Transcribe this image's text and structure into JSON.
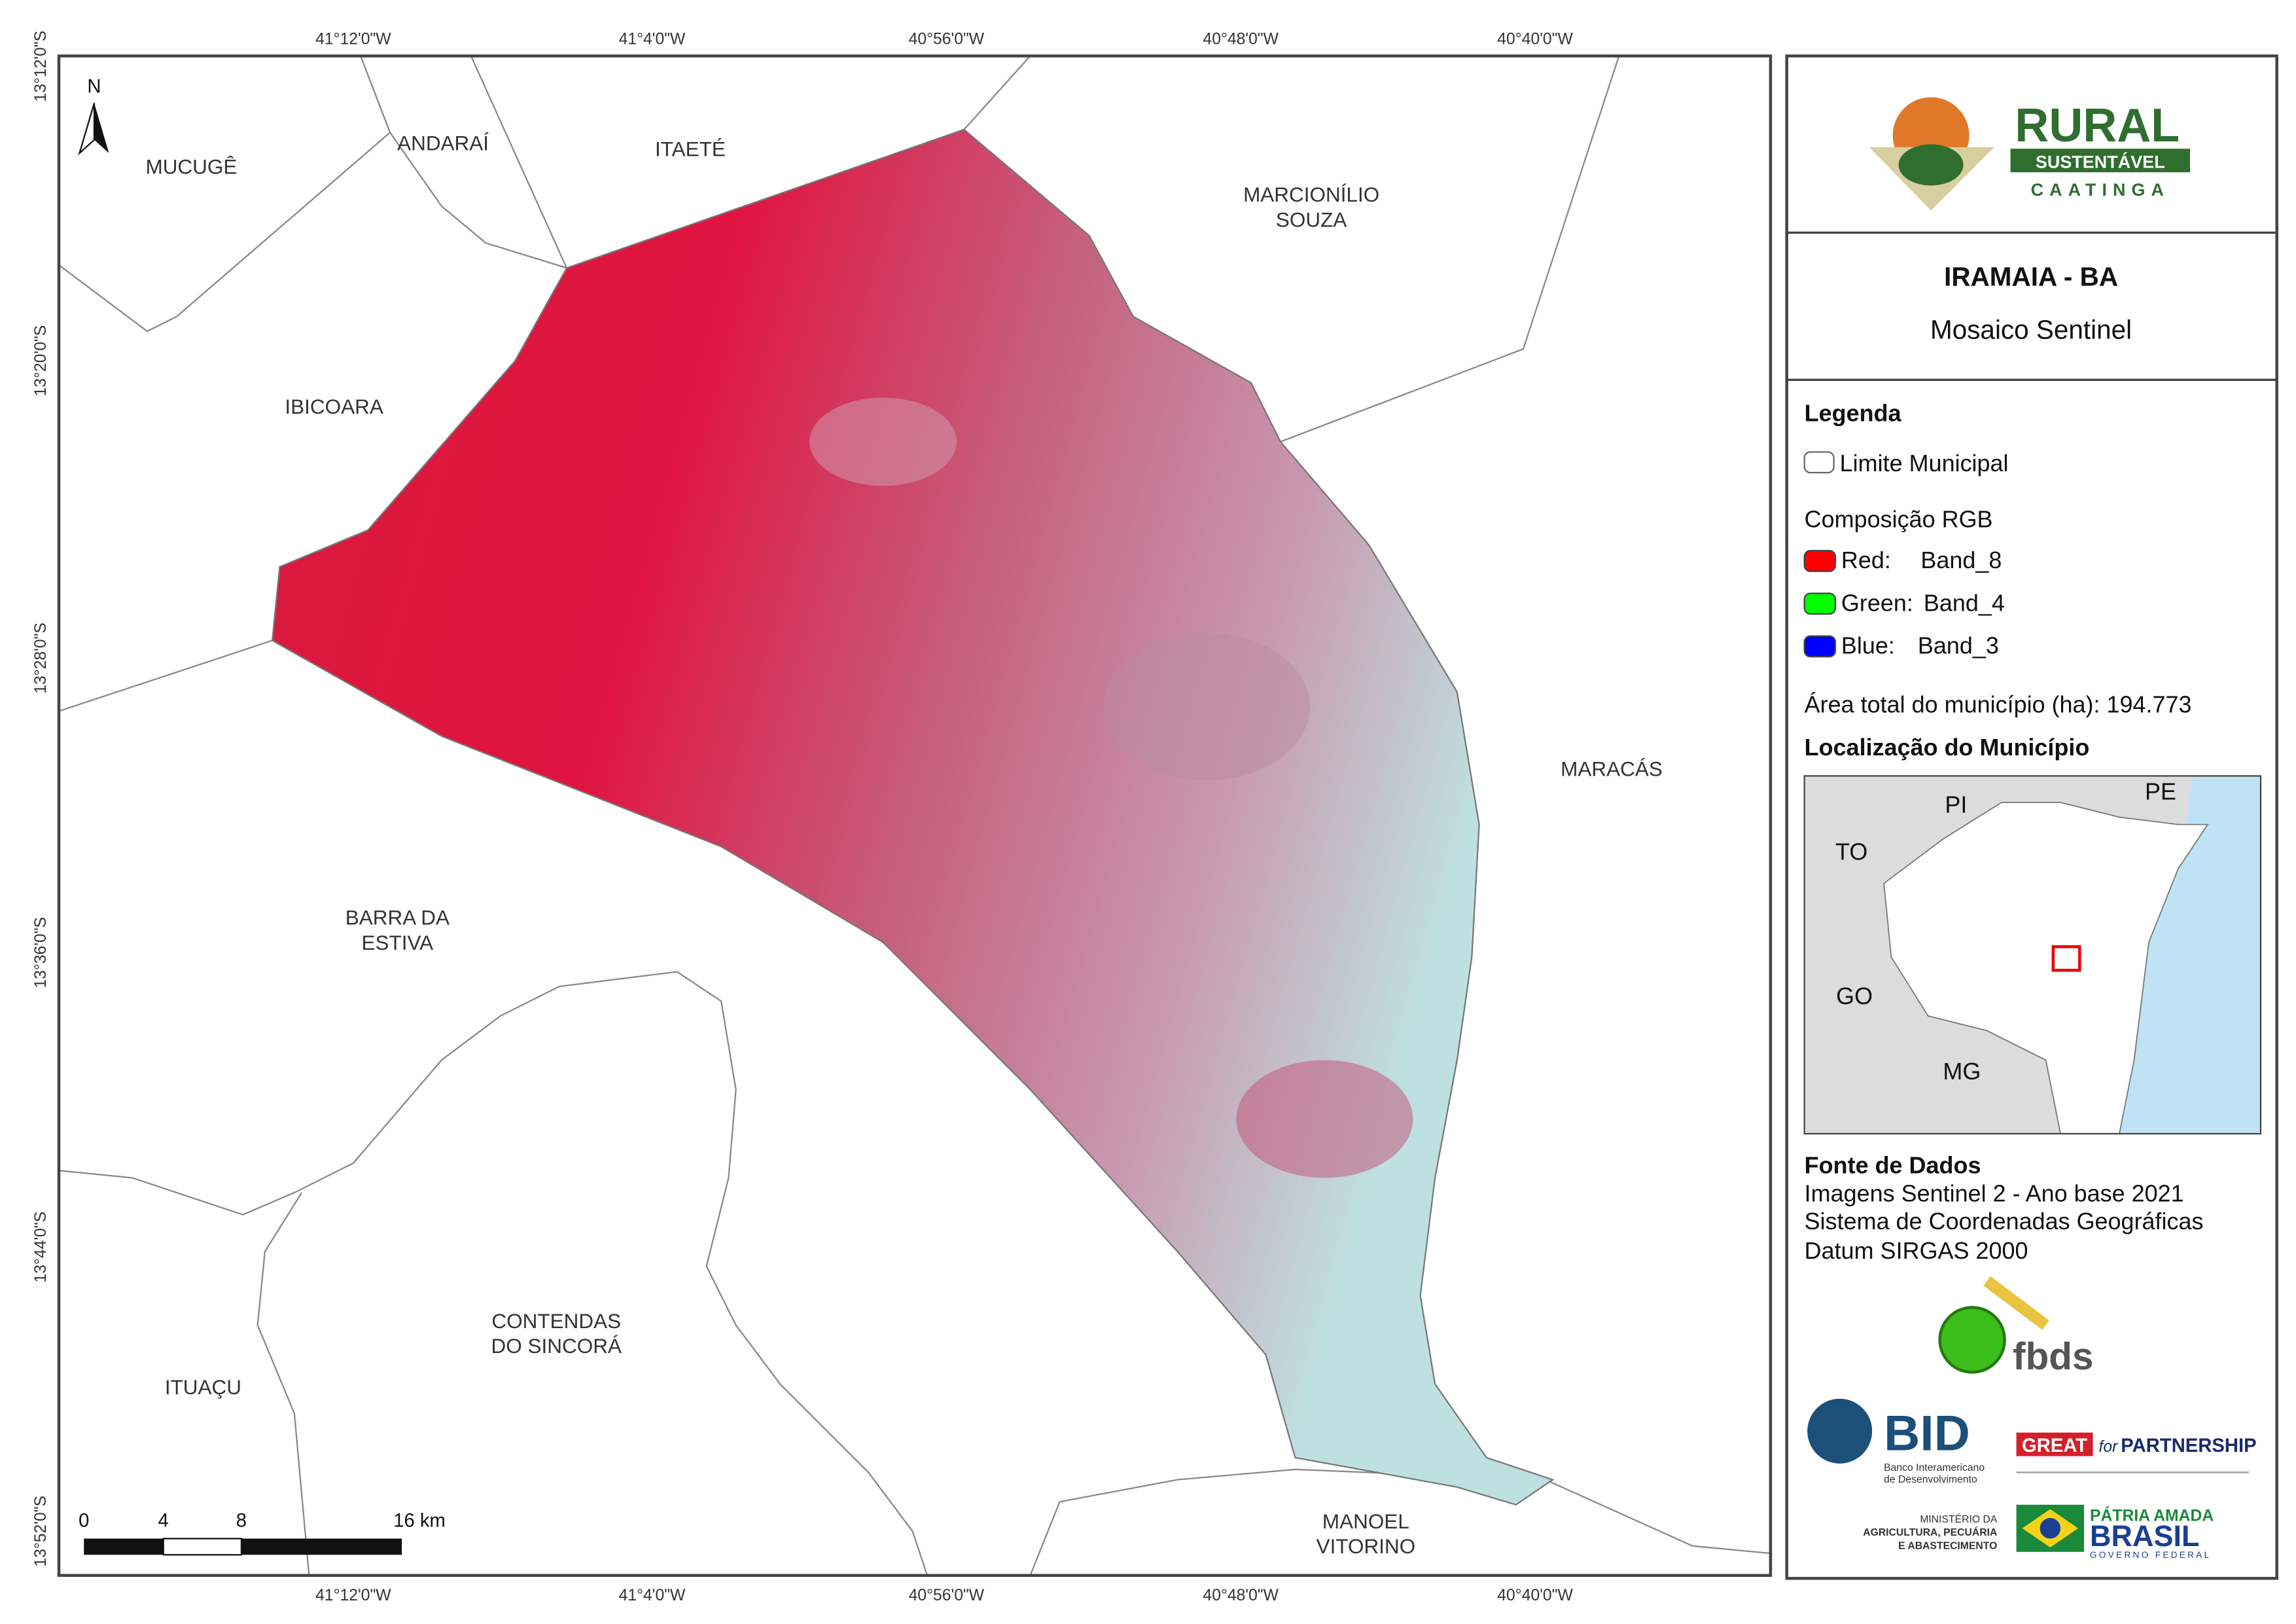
{
  "map": {
    "north": "N",
    "coords_x": [
      "41°12'0\"W",
      "41°4'0\"W",
      "40°56'0\"W",
      "40°48'0\"W",
      "40°40'0\"W"
    ],
    "coords_y": [
      "13°12'0\"S",
      "13°20'0\"S",
      "13°28'0\"S",
      "13°36'0\"S",
      "13°44'0\"S",
      "13°52'0\"S"
    ],
    "places": [
      [
        "MUCUGÊ"
      ],
      [
        "ANDARAÍ"
      ],
      [
        "ITAETÉ"
      ],
      [
        "MARCIONÍLIO",
        "SOUZA"
      ],
      [
        "IBICOARA"
      ],
      [
        "MARACÁS"
      ],
      [
        "BARRA DA",
        "ESTIVA"
      ],
      [
        "CONTENDAS",
        "DO SINCORÁ"
      ],
      [
        "ITUAÇU"
      ],
      [
        "MANOEL",
        "VITORINO"
      ]
    ],
    "scale_labels": [
      "0",
      "4",
      "8",
      "16 km"
    ]
  },
  "panel": {
    "logo": {
      "rural": "RURAL",
      "sustentavel": "SUSTENTÁVEL",
      "caatinga": "CAATINGA"
    },
    "title": "IRAMAIA - BA",
    "subtitle": "Mosaico Sentinel",
    "legend": {
      "title": "Legenda",
      "boundary": "Limite Municipal",
      "rgb_title": "Composição RGB",
      "bands": [
        [
          "Red:",
          "Band_8"
        ],
        [
          "Green:",
          "Band_4"
        ],
        [
          "Blue:",
          "Band_3"
        ]
      ]
    },
    "area": "Área total do município (ha): 194.773",
    "location_title": "Localização do Município",
    "inset_labels": [
      "PI",
      "PE",
      "TO",
      "GO",
      "MG"
    ],
    "sources": {
      "title": "Fonte de Dados",
      "lines": [
        "Imagens Sentinel 2 - Ano base 2021",
        "Sistema de Coordenadas Geográficas",
        "Datum SIRGAS 2000"
      ]
    },
    "logos": {
      "fbds": "fbds",
      "bid": "BID",
      "bid_sub": [
        "Banco Interamericano",
        "de Desenvolvimento"
      ],
      "great": "GREAT",
      "for": "for",
      "partnership": "PARTNERSHIP",
      "ministerio": [
        "MINISTÉRIO DA",
        "AGRICULTURA, PECUÁRIA",
        "E ABASTECIMENTO"
      ],
      "patria": "PÁTRIA AMADA",
      "brasil": "BRASIL",
      "governo": "GOVERNO FEDERAL"
    }
  }
}
